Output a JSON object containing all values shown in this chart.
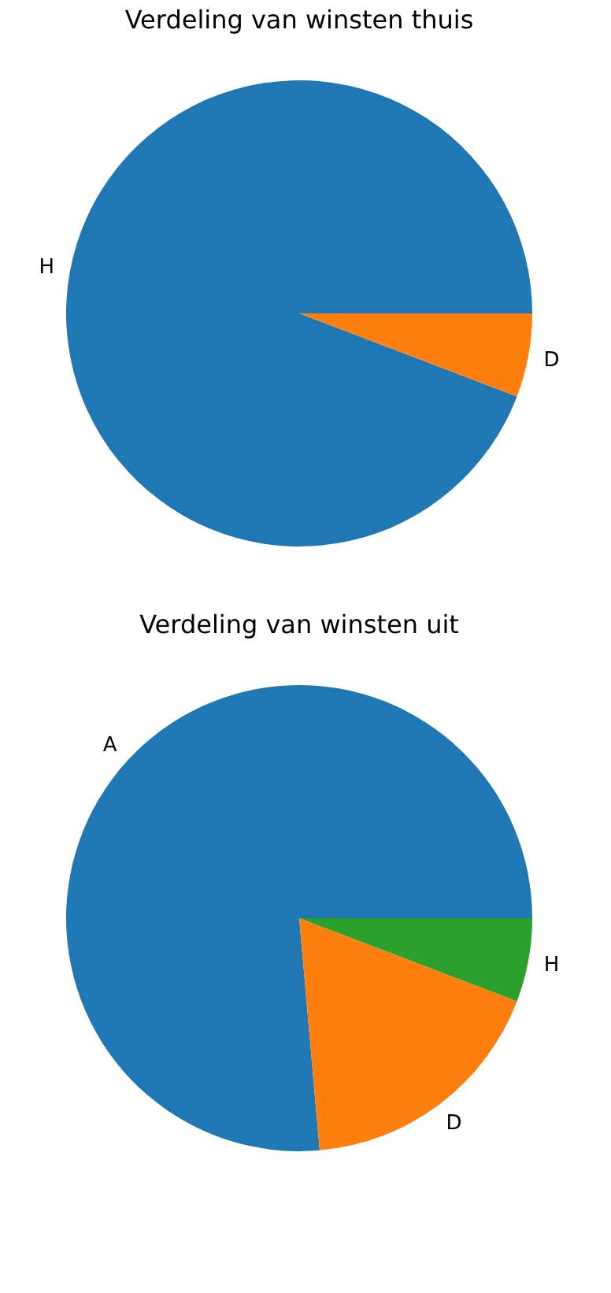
{
  "chart_data": [
    {
      "type": "pie",
      "title": "Verdeling van winsten thuis",
      "categories": [
        "H",
        "D"
      ],
      "values": [
        94.2,
        5.8
      ],
      "colors": [
        "#1f77b4",
        "#ff7f0e"
      ]
    },
    {
      "type": "pie",
      "title": "Verdeling van winsten uit",
      "categories": [
        "A",
        "D",
        "H"
      ],
      "values": [
        76.4,
        17.8,
        5.8
      ],
      "colors": [
        "#1f77b4",
        "#ff7f0e",
        "#2ca02c"
      ]
    }
  ]
}
